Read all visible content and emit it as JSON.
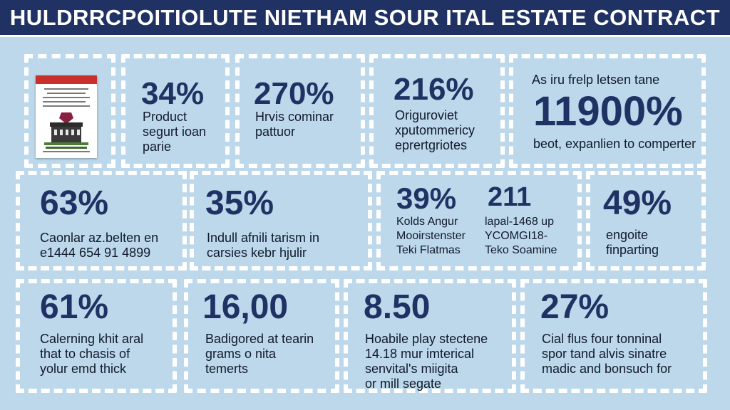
{
  "header": {
    "title": "HULDRRCPOITIOLUTE NIETHAM SOUR ITAL ESTATE CONTRACT"
  },
  "colors": {
    "header_bg": "#1f3263",
    "background": "#bcd8ea",
    "stat_color": "#1f3263",
    "panel_border": "#ffffff"
  },
  "document_icon": {
    "name": "contract-document-icon"
  },
  "cards": [
    {
      "stat": "34%",
      "lines": [
        "Product",
        "segurt ioan",
        "parie"
      ]
    },
    {
      "stat": "270%",
      "lines": [
        "Hrvis cominar",
        "pattuor"
      ]
    },
    {
      "stat": "216%",
      "lines": [
        "Origuroviet",
        "xputommericy",
        "eprertgriotes"
      ]
    },
    {
      "stat": "11900%",
      "top": "As iru frelp letsen tane",
      "lines": [
        "beot, expanlien to comperter"
      ]
    },
    {
      "stat": "63%",
      "lines": [
        "Caonlar az.belten en",
        "e1444 654 91 4899"
      ]
    },
    {
      "stat": "35%",
      "lines": [
        "Indull afnili tarism in",
        "carsies kebr hjulir"
      ]
    },
    {
      "stat": "39%",
      "lines": [
        "Kolds Angur",
        "Mooirstenster",
        "Teki Flatmas"
      ]
    },
    {
      "stat": "211",
      "lines": [
        "lapal-1468 up",
        "YCOMGI18-",
        "Teko Soamine"
      ]
    },
    {
      "stat": "49%",
      "lines": [
        "engoite",
        "finparting"
      ]
    },
    {
      "stat": "61%",
      "lines": [
        "Calerning khit aral",
        "that to chasis of",
        "yolur emd thick"
      ]
    },
    {
      "stat": "16,00",
      "lines": [
        "Badigored at tearin",
        "grams o nita",
        "temerts"
      ]
    },
    {
      "stat": "8.50",
      "lines": [
        "Hoabile play stectene",
        "14.18 mur imterical",
        "senvital's miigita",
        "or mill segate"
      ]
    },
    {
      "stat": "27%",
      "lines": [
        "Cial flus four tonninal",
        "spor tand alvis sinatre",
        "madic and bonsuch for"
      ]
    }
  ]
}
